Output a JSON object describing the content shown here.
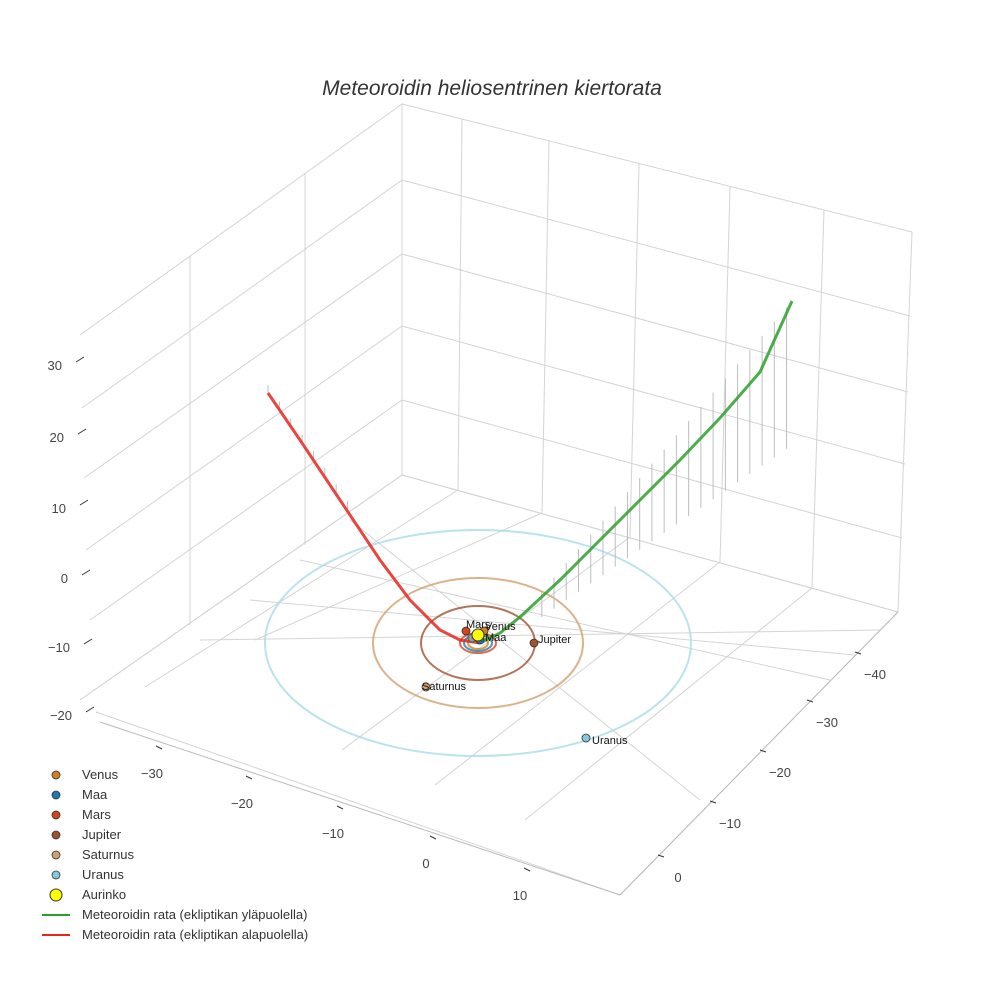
{
  "chart_data": {
    "type": "scatter3d",
    "title": "Meteoroidin heliosentrinen kiertorata",
    "axes": {
      "x": {
        "ticks": [
          "−30",
          "−20",
          "−10",
          "0",
          "10"
        ]
      },
      "y": {
        "ticks": [
          "−40",
          "−30",
          "−20",
          "−10",
          "0"
        ]
      },
      "z": {
        "ticks": [
          "30",
          "20",
          "10",
          "0",
          "−10",
          "−20"
        ]
      }
    },
    "grid": true,
    "legend_position": "bottom-left",
    "sun": {
      "name": "Aurinko",
      "color": "#ffff00"
    },
    "planets": [
      {
        "name": "Venus",
        "label": "Venus",
        "color": "#d2801e",
        "orbit_color": "#d2801e",
        "orbit_radius_au": 0.72
      },
      {
        "name": "Maa",
        "label": "Maa",
        "color": "#1f77b4",
        "orbit_color": "#1f77b4",
        "orbit_radius_au": 1.0
      },
      {
        "name": "Mars",
        "label": "Mars",
        "color": "#d2461e",
        "orbit_color": "#d2461e",
        "orbit_radius_au": 1.52
      },
      {
        "name": "Jupiter",
        "label": "Jupiter",
        "color": "#a0522d",
        "orbit_color": "#a0522d",
        "orbit_radius_au": 5.2
      },
      {
        "name": "Saturnus",
        "label": "Saturnus",
        "color": "#d2a06e",
        "orbit_color": "#d2a06e",
        "orbit_radius_au": 9.5
      },
      {
        "name": "Uranus",
        "label": "Uranus",
        "color": "#87c8e0",
        "orbit_color": "#a8dce8",
        "orbit_radius_au": 19.2
      }
    ],
    "series": [
      {
        "name": "Meteoroidin rata (ekliptikan yläpuolella)",
        "color": "#2ca02c"
      },
      {
        "name": "Meteoroidin rata (ekliptikan alapuolella)",
        "color": "#e6261e"
      }
    ]
  }
}
